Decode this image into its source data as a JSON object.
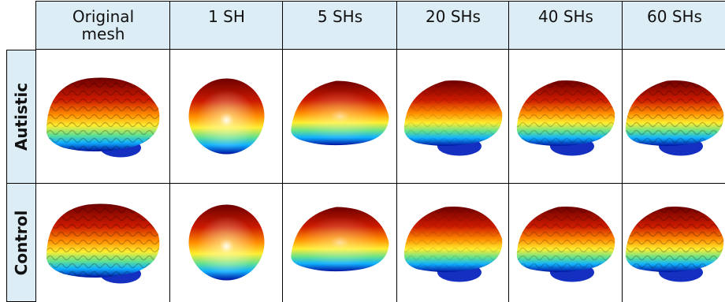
{
  "header": {
    "columns": [
      "Original mesh",
      "1 SH",
      "5 SHs",
      "20 SHs",
      "40 SHs",
      "60 SHs"
    ]
  },
  "rows": [
    "Autistic",
    "Control"
  ]
}
